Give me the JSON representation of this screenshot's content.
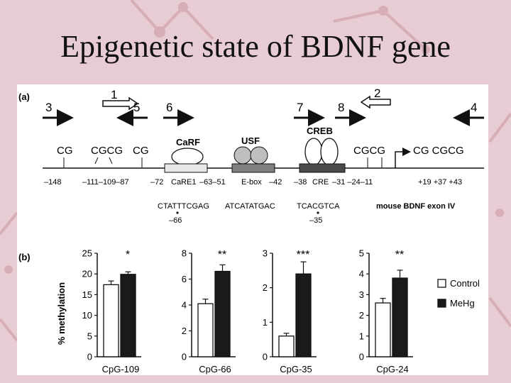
{
  "slide": {
    "title": "Epigenetic state of BDNF gene"
  },
  "panel_a": {
    "label": "(a)",
    "primers": [
      {
        "name": "3",
        "dir": "right"
      },
      {
        "name": "1",
        "dir": "right"
      },
      {
        "name": "5",
        "dir": "left"
      },
      {
        "name": "6",
        "dir": "right"
      },
      {
        "name": "7",
        "dir": "right"
      },
      {
        "name": "8",
        "dir": "right"
      },
      {
        "name": "2",
        "dir": "left"
      },
      {
        "name": "4",
        "dir": "left"
      }
    ],
    "cg_labels": [
      "CG",
      "CGCG",
      "CG",
      "CGCG",
      "CG CGCG"
    ],
    "proteins": {
      "carf": "CaRF",
      "usf": "USF",
      "creb": "CREB"
    },
    "positions": {
      "p148": "–148",
      "p111_109_87": "–111–109–87",
      "p72": "–72",
      "care": "CaRE1",
      "p63_51": "–63–51",
      "ebox": "E-box",
      "p42": "–42",
      "p38": "–38",
      "cre": "CRE",
      "p31_24_11": "–31 –24–11",
      "p19_37_43": "+19 +37 +43"
    },
    "sequences": {
      "care": "CTATTTCGAG",
      "ebox": "ATCATATGAC",
      "cre": "TCACGTCA"
    },
    "marks": {
      "m66": "–66",
      "m35": "–35"
    },
    "exon_label": "mouse BDNF exon IV"
  },
  "panel_b": {
    "label": "(b)",
    "legend": {
      "control": "Control",
      "mehg": "MeHg"
    }
  },
  "chart_data": {
    "type": "bar",
    "ylabel": "% methylation",
    "series": [
      {
        "name": "Control"
      },
      {
        "name": "MeHg"
      }
    ],
    "colors": {
      "control": "#ffffff",
      "mehg": "#1a1a1a"
    },
    "legend_position": "right",
    "subplots": [
      {
        "category": "CpG-109",
        "ylim": [
          0,
          25
        ],
        "yticks": [
          "0",
          "5",
          "10",
          "15",
          "20",
          "25"
        ],
        "values": [
          17.4,
          19.9
        ],
        "errors": [
          0.9,
          0.6
        ],
        "significance": "*"
      },
      {
        "category": "CpG-66",
        "ylim": [
          0,
          8
        ],
        "yticks": [
          "0",
          "2",
          "4",
          "6",
          "8"
        ],
        "values": [
          4.1,
          6.6
        ],
        "errors": [
          0.35,
          0.5
        ],
        "significance": "**"
      },
      {
        "category": "CpG-35",
        "ylim": [
          0,
          3
        ],
        "yticks": [
          "0",
          "1",
          "2",
          "3"
        ],
        "values": [
          0.6,
          2.4
        ],
        "errors": [
          0.08,
          0.35
        ],
        "significance": "***"
      },
      {
        "category": "CpG-24",
        "ylim": [
          0,
          5
        ],
        "yticks": [
          "0",
          "1",
          "2",
          "3",
          "4",
          "5"
        ],
        "values": [
          2.6,
          3.8
        ],
        "errors": [
          0.22,
          0.38
        ],
        "significance": "**"
      }
    ]
  }
}
